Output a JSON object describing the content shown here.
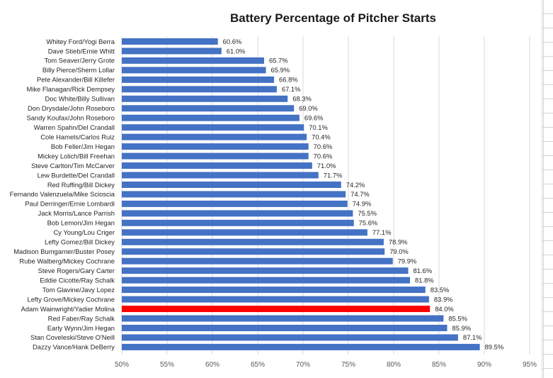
{
  "chart_data": {
    "type": "bar",
    "orientation": "horizontal",
    "title": "Battery Percentage of Pitcher Starts",
    "xlabel": "",
    "ylabel": "",
    "xlim": [
      50,
      95
    ],
    "x_ticks": [
      "50%",
      "55%",
      "60%",
      "65%",
      "70%",
      "75%",
      "80%",
      "85%",
      "90%",
      "95%"
    ],
    "grid": true,
    "bar_color": "#4472c4",
    "highlight_color": "#ff0000",
    "highlight_category": "Adam Wainwright/Yadier Molina",
    "categories": [
      "Whitey Ford/Yogi Berra",
      "Dave Stieb/Ernie Whitt",
      "Tom Seaver/Jerry Grote",
      "Billy Pierce/Sherm Lollar",
      "Pete Alexander/Bill Killefer",
      "Mike Flanagan/Rick Dempsey",
      "Doc White/Billy Sullivan",
      "Don Drysdale/John Roseboro",
      "Sandy Koufax/John Roseboro",
      "Warren Spahn/Del Crandall",
      "Cole Hamels/Carlos Ruiz",
      "Bob Feller/Jim Hegan",
      "Mickey Lolich/Bill Freehan",
      "Steve Carlton/Tim McCarver",
      "Lew Burdette/Del Crandall",
      "Red Ruffing/Bill Dickey",
      "Fernando Valenzuela/Mike Scioscia",
      "Paul Derringer/Ernie Lombardi",
      "Jack Morris/Lance Parrish",
      "Bob Lemon/Jim Hegan",
      "Cy Young/Lou Criger",
      "Lefty Gomez/Bill Dickey",
      "Madison Bumgarner/Buster Posey",
      "Rube Walberg/Mickey Cochrane",
      "Steve Rogers/Gary Carter",
      "Eddie Cicotte/Ray Schalk",
      "Tom Glavine/Javy Lopez",
      "Lefty Grove/Mickey Cochrane",
      "Adam Wainwright/Yadier Molina",
      "Red Faber/Ray Schalk",
      "Early Wynn/Jim Hegan",
      "Stan Coveleski/Steve O'Neill",
      "Dazzy Vance/Hank DeBerry"
    ],
    "values": [
      60.6,
      61.0,
      65.7,
      65.9,
      66.8,
      67.1,
      68.3,
      69.0,
      69.6,
      70.1,
      70.4,
      70.6,
      70.6,
      71.0,
      71.7,
      74.2,
      74.7,
      74.9,
      75.5,
      75.6,
      77.1,
      78.9,
      79.0,
      79.9,
      81.6,
      81.8,
      83.5,
      83.9,
      84.0,
      85.5,
      85.9,
      87.1,
      89.5
    ],
    "value_labels": [
      "60.6%",
      "61.0%",
      "65.7%",
      "65.9%",
      "66.8%",
      "67.1%",
      "68.3%",
      "69.0%",
      "69.6%",
      "70.1%",
      "70.4%",
      "70.6%",
      "70.6%",
      "71.0%",
      "71.7%",
      "74.2%",
      "74.7%",
      "74.9%",
      "75.5%",
      "75.6%",
      "77.1%",
      "78.9%",
      "79.0%",
      "79.9%",
      "81.6%",
      "81.8%",
      "83.5%",
      "83.9%",
      "84.0%",
      "85.5%",
      "85.9%",
      "87.1%",
      "89.5%"
    ]
  }
}
